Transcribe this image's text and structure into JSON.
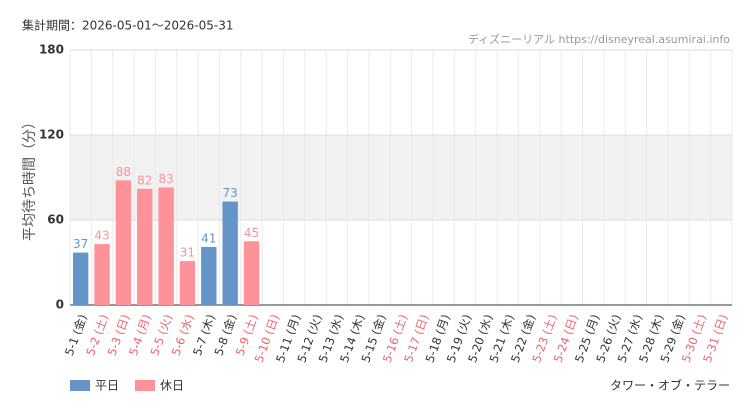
{
  "chart_data": {
    "type": "bar",
    "period": "集計期間：2026-05-01～2026-05-31",
    "source": "ディズニーリアル https://disneyreal.asumirai.info",
    "y_label": "平均待ち時間（分）",
    "attraction": "タワー・オブ・テラー",
    "categories": [
      "5-1 (金)",
      "5-2 (土)",
      "5-3 (日)",
      "5-4 (月)",
      "5-5 (火)",
      "5-6 (水)",
      "5-7 (木)",
      "5-8 (金)",
      "5-9 (土)",
      "5-10 (日)",
      "5-11 (月)",
      "5-12 (火)",
      "5-13 (水)",
      "5-14 (木)",
      "5-15 (金)",
      "5-16 (土)",
      "5-17 (日)",
      "5-18 (月)",
      "5-19 (火)",
      "5-20 (水)",
      "5-21 (木)",
      "5-22 (金)",
      "5-23 (土)",
      "5-24 (日)",
      "5-25 (月)",
      "5-26 (火)",
      "5-27 (水)",
      "5-28 (木)",
      "5-29 (金)",
      "5-30 (土)",
      "5-31 (日)"
    ],
    "category_label_colors": [
      "#333",
      "#e8676f",
      "#e8676f",
      "#e8676f",
      "#e8676f",
      "#e8676f",
      "#333",
      "#333",
      "#e8676f",
      "#e8676f",
      "#333",
      "#333",
      "#333",
      "#333",
      "#333",
      "#e8676f",
      "#e8676f",
      "#333",
      "#333",
      "#333",
      "#333",
      "#333",
      "#e8676f",
      "#e8676f",
      "#333",
      "#333",
      "#333",
      "#333",
      "#333",
      "#e8676f",
      "#e8676f"
    ],
    "series": [
      {
        "name": "平日",
        "color": "#6495c8",
        "values": [
          37,
          null,
          null,
          null,
          null,
          null,
          41,
          73,
          null,
          null,
          null,
          null,
          null,
          null,
          null,
          null,
          null,
          null,
          null,
          null,
          null,
          null,
          null,
          null,
          null,
          null,
          null,
          null,
          null,
          null,
          null
        ]
      },
      {
        "name": "休日",
        "color": "#ff9198",
        "values": [
          null,
          43,
          88,
          82,
          83,
          31,
          null,
          null,
          45,
          null,
          null,
          null,
          null,
          null,
          null,
          null,
          null,
          null,
          null,
          null,
          null,
          null,
          null,
          null,
          null,
          null,
          null,
          null,
          null,
          null,
          null
        ]
      }
    ],
    "ylim": [
      0,
      180
    ],
    "yticks": [
      0,
      60,
      120,
      180
    ],
    "shaded_range": [
      60,
      120
    ],
    "grid": true
  }
}
